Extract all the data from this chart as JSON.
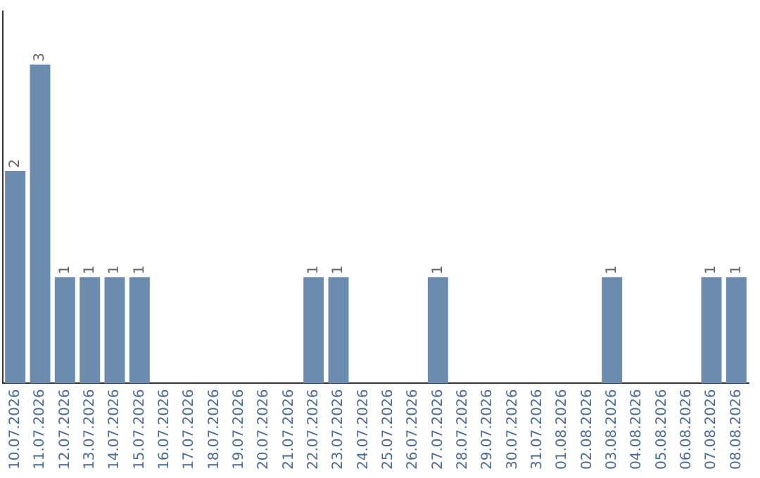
{
  "chart_data": {
    "type": "bar",
    "categories": [
      "10.07.2026",
      "11.07.2026",
      "12.07.2026",
      "13.07.2026",
      "14.07.2026",
      "15.07.2026",
      "16.07.2026",
      "17.07.2026",
      "18.07.2026",
      "19.07.2026",
      "20.07.2026",
      "21.07.2026",
      "22.07.2026",
      "23.07.2026",
      "24.07.2026",
      "25.07.2026",
      "26.07.2026",
      "27.07.2026",
      "28.07.2026",
      "29.07.2026",
      "30.07.2026",
      "31.07.2026",
      "01.08.2026",
      "02.08.2026",
      "03.08.2026",
      "04.08.2026",
      "05.08.2026",
      "06.08.2026",
      "07.08.2026",
      "08.08.2026"
    ],
    "values": [
      2,
      3,
      1,
      1,
      1,
      1,
      0,
      0,
      0,
      0,
      0,
      0,
      1,
      1,
      0,
      0,
      0,
      1,
      0,
      0,
      0,
      0,
      0,
      0,
      1,
      0,
      0,
      0,
      1,
      1
    ],
    "value_labels": [
      "2",
      "3",
      "1",
      "1",
      "1",
      "1",
      null,
      null,
      null,
      null,
      null,
      null,
      "1",
      "1",
      null,
      null,
      null,
      "1",
      null,
      null,
      null,
      null,
      null,
      null,
      "1",
      null,
      null,
      null,
      "1",
      "1"
    ],
    "color": "#6b8cae",
    "grid": false,
    "legend": false
  }
}
